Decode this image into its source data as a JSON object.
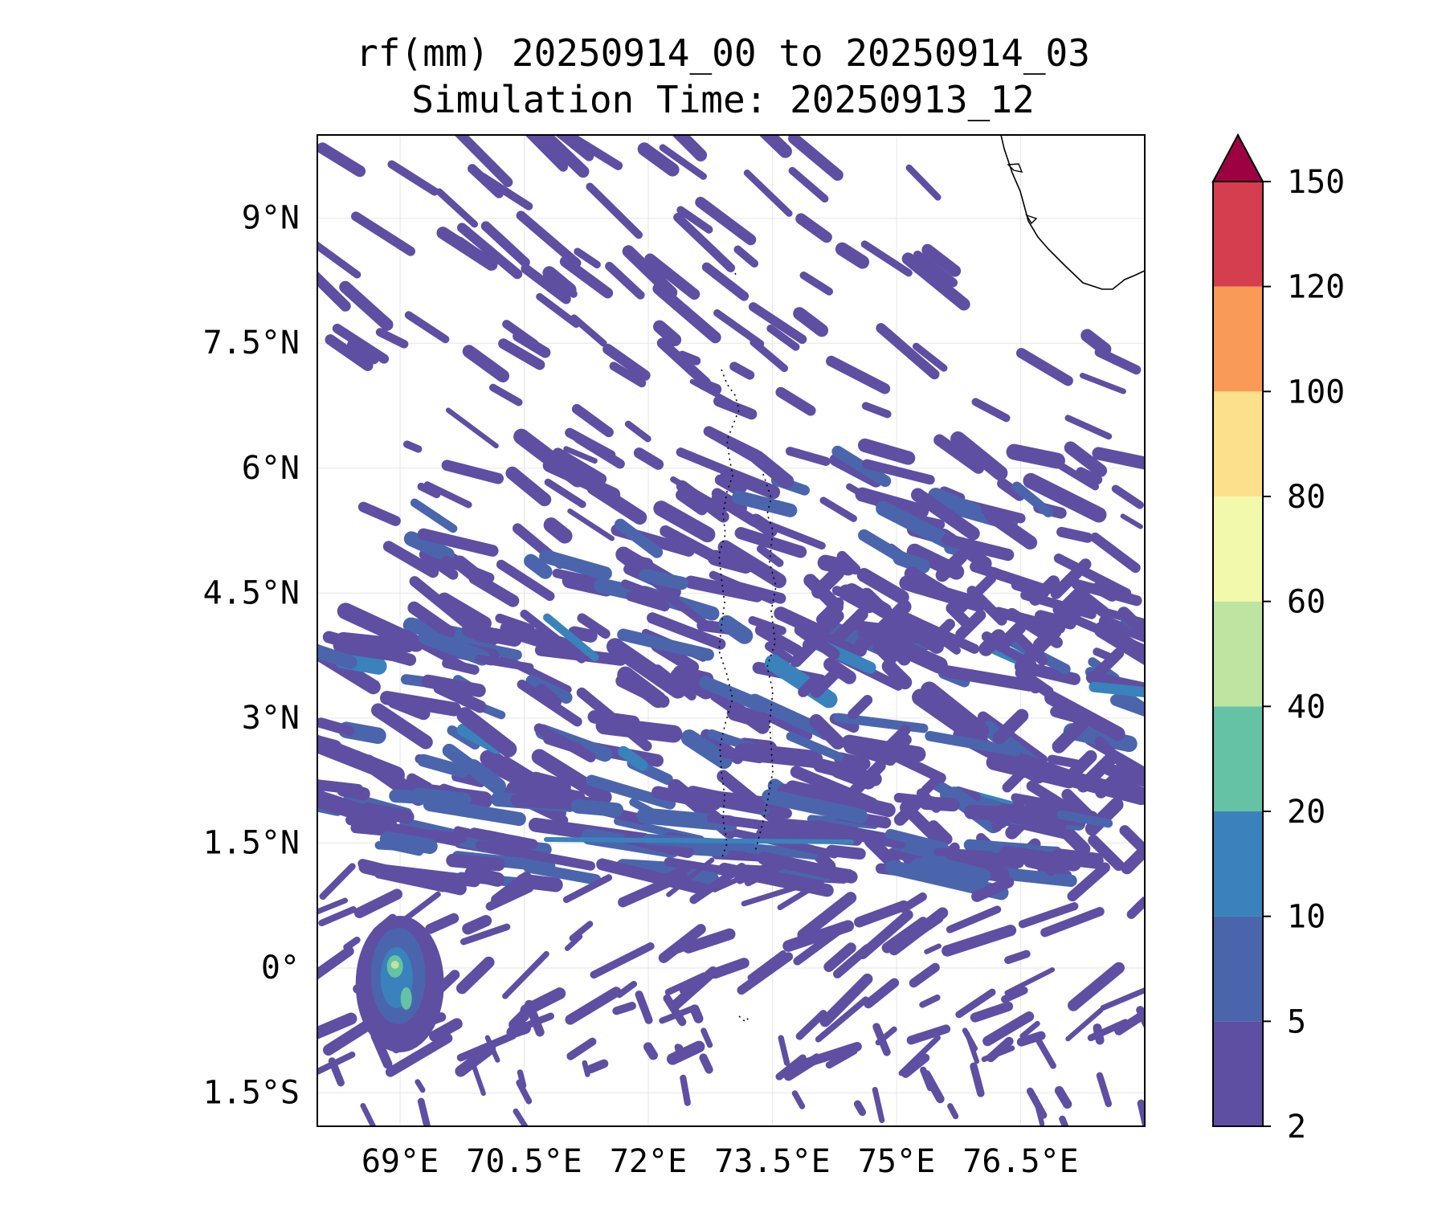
{
  "title": {
    "line1": "rf(mm) 20250914_00 to 20250914_03",
    "line2": "Simulation Time: 20250913_12"
  },
  "map": {
    "lon_range": [
      68.0,
      78.0
    ],
    "lat_range": [
      -1.9,
      10.0
    ],
    "x_ticks": [
      {
        "lon": 69.0,
        "label": "69°E"
      },
      {
        "lon": 70.5,
        "label": "70.5°E"
      },
      {
        "lon": 72.0,
        "label": "72°E"
      },
      {
        "lon": 73.5,
        "label": "73.5°E"
      },
      {
        "lon": 75.0,
        "label": "75°E"
      },
      {
        "lon": 76.5,
        "label": "76.5°E"
      }
    ],
    "y_ticks": [
      {
        "lat": 9.0,
        "label": "9°N"
      },
      {
        "lat": 7.5,
        "label": "7.5°N"
      },
      {
        "lat": 6.0,
        "label": "6°N"
      },
      {
        "lat": 4.5,
        "label": "4.5°N"
      },
      {
        "lat": 3.0,
        "label": "3°N"
      },
      {
        "lat": 1.5,
        "label": "1.5°N"
      },
      {
        "lat": 0.0,
        "label": "0°"
      },
      {
        "lat": -1.5,
        "label": "1.5°S"
      }
    ],
    "gridlines": true,
    "coastline": "India / Sri Lanka south tip (top-right)"
  },
  "colorbar": {
    "extend": "max",
    "levels": [
      {
        "lo": 2,
        "hi": 5,
        "color": "#5e4fa2",
        "label": "2"
      },
      {
        "lo": 5,
        "hi": 10,
        "color": "#4b65ad",
        "label": "5"
      },
      {
        "lo": 10,
        "hi": 20,
        "color": "#3a82bb",
        "label": "10"
      },
      {
        "lo": 20,
        "hi": 40,
        "color": "#66c2a5",
        "label": "20"
      },
      {
        "lo": 40,
        "hi": 60,
        "color": "#bde4a0",
        "label": "40"
      },
      {
        "lo": 60,
        "hi": 80,
        "color": "#f2f9ac",
        "label": "60"
      },
      {
        "lo": 80,
        "hi": 100,
        "color": "#fde08b",
        "label": "80"
      },
      {
        "lo": 100,
        "hi": 120,
        "color": "#f99a56",
        "label": "100"
      },
      {
        "lo": 120,
        "hi": 150,
        "color": "#d53e4f",
        "label": "120"
      }
    ],
    "top_label": "150",
    "over_color": "#9e0142"
  },
  "chart_data": {
    "type": "heatmap",
    "variable": "rf(mm)",
    "description_units": "mm accumulated rainfall",
    "features": [
      {
        "kind": "band",
        "lon": [
          68.0,
          72.0
        ],
        "lat": [
          8.0,
          10.0
        ],
        "value": 3
      },
      {
        "kind": "band",
        "lon": [
          71.5,
          78.0
        ],
        "lat": [
          4.0,
          6.0
        ],
        "value": 4
      },
      {
        "kind": "band",
        "lon": [
          68.0,
          78.0
        ],
        "lat": [
          2.0,
          4.0
        ],
        "value": 5
      },
      {
        "kind": "band",
        "lon": [
          69.0,
          76.0
        ],
        "lat": [
          1.0,
          2.0
        ],
        "value": 6
      },
      {
        "kind": "band",
        "lon": [
          70.0,
          78.0
        ],
        "lat": [
          -1.0,
          1.0
        ],
        "value": 4
      },
      {
        "kind": "peak",
        "lon": 68.9,
        "lat": 0.0,
        "value": 50
      }
    ]
  }
}
